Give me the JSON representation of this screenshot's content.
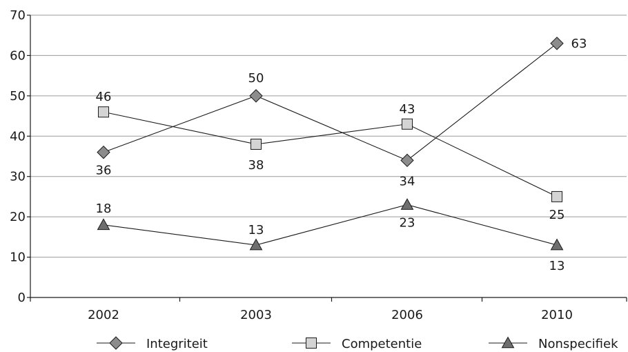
{
  "chart_data": {
    "type": "line",
    "title": "",
    "xlabel": "",
    "ylabel": "",
    "categories": [
      "2002",
      "2003",
      "2006",
      "2010"
    ],
    "ylim": [
      0,
      70
    ],
    "yticks": [
      0,
      10,
      20,
      30,
      40,
      50,
      60,
      70
    ],
    "grid": true,
    "legend_position": "bottom",
    "series": [
      {
        "name": "Integriteit",
        "marker": "diamond",
        "color": "#8c8c8c",
        "values": [
          36,
          50,
          34,
          63
        ],
        "value_labels": [
          "36",
          "50",
          "34",
          "63"
        ]
      },
      {
        "name": "Competentie",
        "marker": "square",
        "color": "#d4d4d4",
        "values": [
          46,
          38,
          43,
          25
        ],
        "value_labels": [
          "46",
          "38",
          "43",
          "25"
        ]
      },
      {
        "name": "Nonspecifiek",
        "marker": "triangle",
        "color": "#6e6e6e",
        "values": [
          18,
          13,
          23,
          13
        ],
        "value_labels": [
          "18",
          "13",
          "23",
          "13"
        ]
      }
    ]
  }
}
